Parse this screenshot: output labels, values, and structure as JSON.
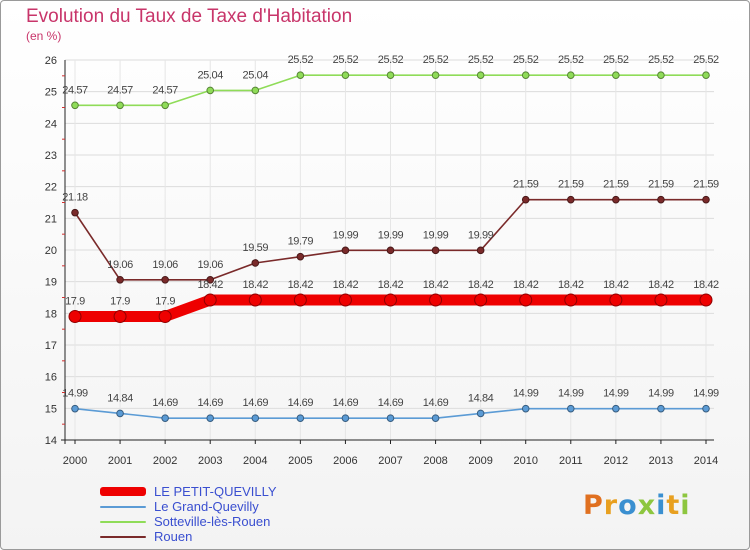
{
  "title": "Evolution du Taux de Taxe d'Habitation",
  "unit": "(en %)",
  "logo": {
    "text": "Proxiti",
    "colors": [
      "#e07020",
      "#e8a020",
      "#3a8fd0",
      "#8dc63f",
      "#3a8fd0",
      "#e8a020",
      "#8dc63f"
    ]
  },
  "chart_data": {
    "type": "line",
    "title": "Evolution du Taux de Taxe d'Habitation",
    "ylabel": "(en %)",
    "xlabel": "",
    "ylim": [
      14,
      26
    ],
    "yticks": [
      14,
      15,
      16,
      17,
      18,
      19,
      20,
      21,
      22,
      23,
      24,
      25,
      26
    ],
    "grid": true,
    "legend_position": "bottom-left",
    "x": [
      "2000",
      "2001",
      "2002",
      "2003",
      "2004",
      "2005",
      "2006",
      "2007",
      "2008",
      "2009",
      "2010",
      "2011",
      "2012",
      "2013",
      "2014"
    ],
    "series": [
      {
        "name": "LE PETIT-QUEVILLY",
        "color": "#ee0000",
        "bold": true,
        "values": [
          17.9,
          17.9,
          17.9,
          18.42,
          18.42,
          18.42,
          18.42,
          18.42,
          18.42,
          18.42,
          18.42,
          18.42,
          18.42,
          18.42,
          18.42
        ],
        "labels": [
          "17.9",
          "17.9",
          "17.9",
          "18.42",
          "18.42",
          "18.42",
          "18.42",
          "18.42",
          "18.42",
          "18.42",
          "18.42",
          "18.42",
          "18.42",
          "18.42",
          "18.42"
        ]
      },
      {
        "name": "Le Grand-Quevilly",
        "color": "#5b9bd5",
        "bold": false,
        "values": [
          14.99,
          14.84,
          14.69,
          14.69,
          14.69,
          14.69,
          14.69,
          14.69,
          14.69,
          14.84,
          14.99,
          14.99,
          14.99,
          14.99,
          14.99
        ],
        "labels": [
          "14.99",
          "14.84",
          "14.69",
          "14.69",
          "14.69",
          "14.69",
          "14.69",
          "14.69",
          "14.69",
          "14.84",
          "14.99",
          "14.99",
          "14.99",
          "14.99",
          "14.99"
        ]
      },
      {
        "name": "Sotteville-lès-Rouen",
        "color": "#8fdc58",
        "bold": false,
        "values": [
          24.57,
          24.57,
          24.57,
          25.04,
          25.04,
          25.52,
          25.52,
          25.52,
          25.52,
          25.52,
          25.52,
          25.52,
          25.52,
          25.52,
          25.52
        ],
        "labels": [
          "24.57",
          "24.57",
          "24.57",
          "25.04",
          "25.04",
          "25.52",
          "25.52",
          "25.52",
          "25.52",
          "25.52",
          "25.52",
          "25.52",
          "25.52",
          "25.52",
          "25.52"
        ]
      },
      {
        "name": "Rouen",
        "color": "#7a2a2a",
        "bold": false,
        "values": [
          21.18,
          19.06,
          19.06,
          19.06,
          19.59,
          19.79,
          19.99,
          19.99,
          19.99,
          19.99,
          21.59,
          21.59,
          21.59,
          21.59,
          21.59
        ],
        "labels": [
          "21.18",
          "19.06",
          "19.06",
          "19.06",
          "19.59",
          "19.79",
          "19.99",
          "19.99",
          "19.99",
          "19.99",
          "21.59",
          "21.59",
          "21.59",
          "21.59",
          "21.59"
        ]
      }
    ]
  }
}
